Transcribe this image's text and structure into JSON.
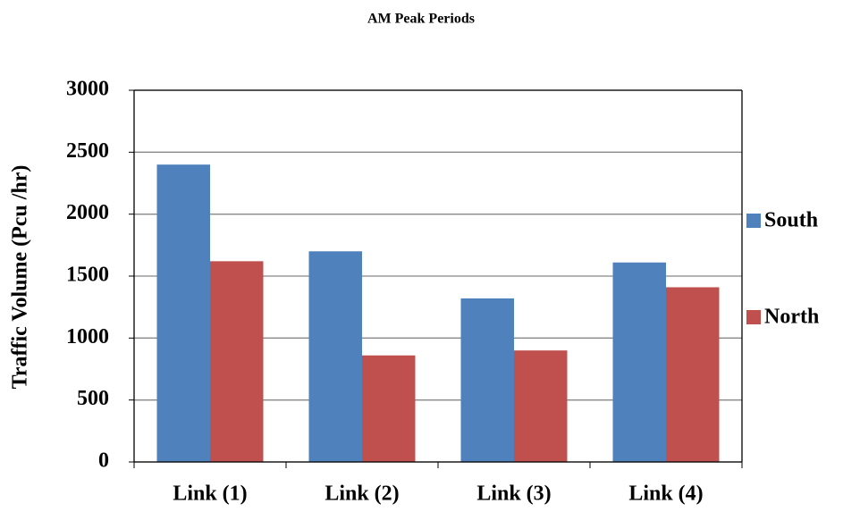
{
  "chart_data": {
    "type": "bar",
    "title": "AM Peak Periods",
    "y_label": "Traffic Volume (Pcu /hr)",
    "categories": [
      "Link (1)",
      "Link (2)",
      "Link (3)",
      "Link (4)"
    ],
    "series": [
      {
        "name": "South",
        "color": "#4f81bd",
        "values": [
          2400,
          1700,
          1320,
          1610
        ]
      },
      {
        "name": "North",
        "color": "#c0504d",
        "values": [
          1620,
          860,
          900,
          1410
        ]
      }
    ],
    "ylim": [
      0,
      3000
    ],
    "yticks": [
      0,
      500,
      1000,
      1500,
      2000,
      2500,
      3000
    ],
    "grid": true,
    "legend": "right"
  }
}
